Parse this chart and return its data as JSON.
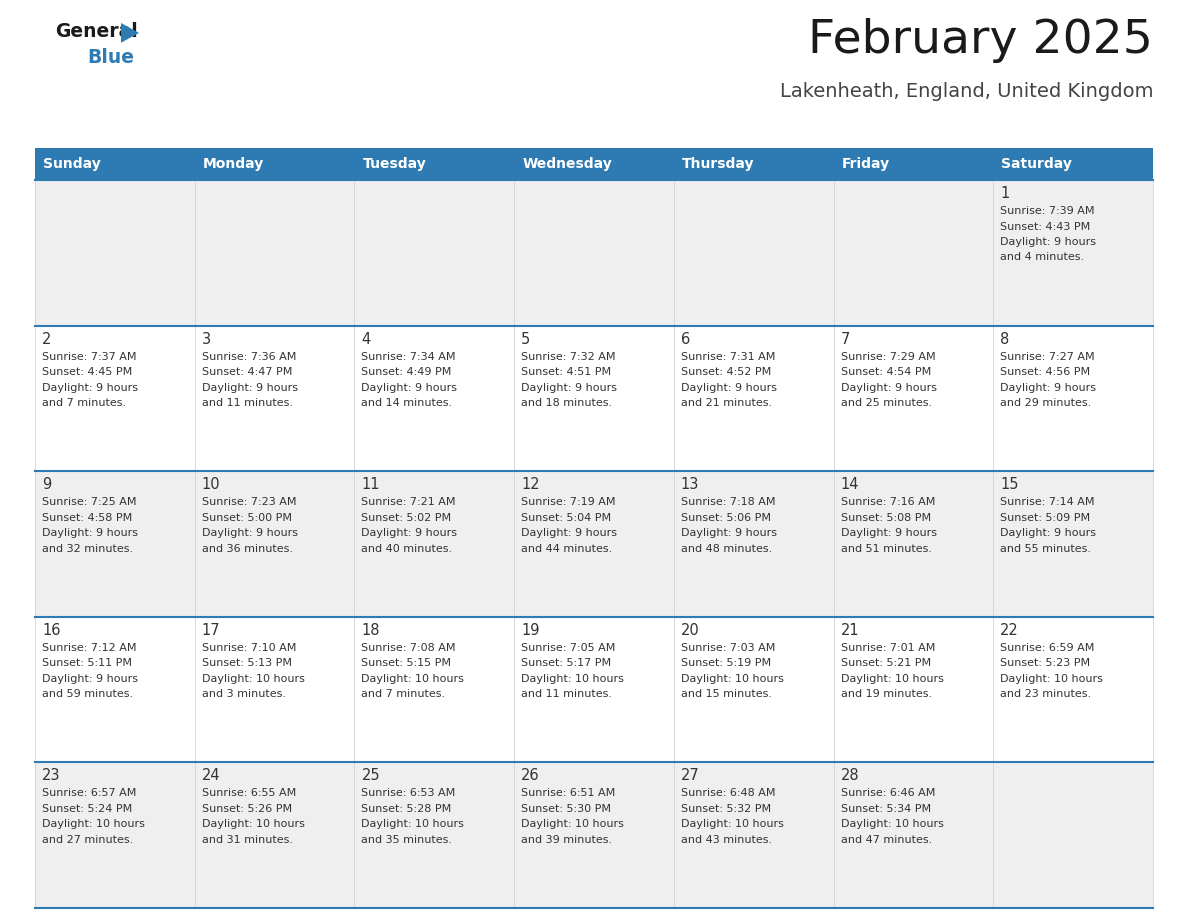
{
  "title": "February 2025",
  "subtitle": "Lakenheath, England, United Kingdom",
  "header_color": "#2E7BB4",
  "header_text_color": "#FFFFFF",
  "cell_bg_odd": "#EFEFEF",
  "cell_bg_even": "#FFFFFF",
  "border_color": "#2E7BB4",
  "text_color": "#333333",
  "days_of_week": [
    "Sunday",
    "Monday",
    "Tuesday",
    "Wednesday",
    "Thursday",
    "Friday",
    "Saturday"
  ],
  "logo_color": "#2E7BB4",
  "calendar_data": [
    [
      null,
      null,
      null,
      null,
      null,
      null,
      {
        "day": 1,
        "sunrise": "7:39 AM",
        "sunset": "4:43 PM",
        "daylight": "9 hours and 4 minutes."
      }
    ],
    [
      {
        "day": 2,
        "sunrise": "7:37 AM",
        "sunset": "4:45 PM",
        "daylight": "9 hours and 7 minutes."
      },
      {
        "day": 3,
        "sunrise": "7:36 AM",
        "sunset": "4:47 PM",
        "daylight": "9 hours and 11 minutes."
      },
      {
        "day": 4,
        "sunrise": "7:34 AM",
        "sunset": "4:49 PM",
        "daylight": "9 hours and 14 minutes."
      },
      {
        "day": 5,
        "sunrise": "7:32 AM",
        "sunset": "4:51 PM",
        "daylight": "9 hours and 18 minutes."
      },
      {
        "day": 6,
        "sunrise": "7:31 AM",
        "sunset": "4:52 PM",
        "daylight": "9 hours and 21 minutes."
      },
      {
        "day": 7,
        "sunrise": "7:29 AM",
        "sunset": "4:54 PM",
        "daylight": "9 hours and 25 minutes."
      },
      {
        "day": 8,
        "sunrise": "7:27 AM",
        "sunset": "4:56 PM",
        "daylight": "9 hours and 29 minutes."
      }
    ],
    [
      {
        "day": 9,
        "sunrise": "7:25 AM",
        "sunset": "4:58 PM",
        "daylight": "9 hours and 32 minutes."
      },
      {
        "day": 10,
        "sunrise": "7:23 AM",
        "sunset": "5:00 PM",
        "daylight": "9 hours and 36 minutes."
      },
      {
        "day": 11,
        "sunrise": "7:21 AM",
        "sunset": "5:02 PM",
        "daylight": "9 hours and 40 minutes."
      },
      {
        "day": 12,
        "sunrise": "7:19 AM",
        "sunset": "5:04 PM",
        "daylight": "9 hours and 44 minutes."
      },
      {
        "day": 13,
        "sunrise": "7:18 AM",
        "sunset": "5:06 PM",
        "daylight": "9 hours and 48 minutes."
      },
      {
        "day": 14,
        "sunrise": "7:16 AM",
        "sunset": "5:08 PM",
        "daylight": "9 hours and 51 minutes."
      },
      {
        "day": 15,
        "sunrise": "7:14 AM",
        "sunset": "5:09 PM",
        "daylight": "9 hours and 55 minutes."
      }
    ],
    [
      {
        "day": 16,
        "sunrise": "7:12 AM",
        "sunset": "5:11 PM",
        "daylight": "9 hours and 59 minutes."
      },
      {
        "day": 17,
        "sunrise": "7:10 AM",
        "sunset": "5:13 PM",
        "daylight": "10 hours and 3 minutes."
      },
      {
        "day": 18,
        "sunrise": "7:08 AM",
        "sunset": "5:15 PM",
        "daylight": "10 hours and 7 minutes."
      },
      {
        "day": 19,
        "sunrise": "7:05 AM",
        "sunset": "5:17 PM",
        "daylight": "10 hours and 11 minutes."
      },
      {
        "day": 20,
        "sunrise": "7:03 AM",
        "sunset": "5:19 PM",
        "daylight": "10 hours and 15 minutes."
      },
      {
        "day": 21,
        "sunrise": "7:01 AM",
        "sunset": "5:21 PM",
        "daylight": "10 hours and 19 minutes."
      },
      {
        "day": 22,
        "sunrise": "6:59 AM",
        "sunset": "5:23 PM",
        "daylight": "10 hours and 23 minutes."
      }
    ],
    [
      {
        "day": 23,
        "sunrise": "6:57 AM",
        "sunset": "5:24 PM",
        "daylight": "10 hours and 27 minutes."
      },
      {
        "day": 24,
        "sunrise": "6:55 AM",
        "sunset": "5:26 PM",
        "daylight": "10 hours and 31 minutes."
      },
      {
        "day": 25,
        "sunrise": "6:53 AM",
        "sunset": "5:28 PM",
        "daylight": "10 hours and 35 minutes."
      },
      {
        "day": 26,
        "sunrise": "6:51 AM",
        "sunset": "5:30 PM",
        "daylight": "10 hours and 39 minutes."
      },
      {
        "day": 27,
        "sunrise": "6:48 AM",
        "sunset": "5:32 PM",
        "daylight": "10 hours and 43 minutes."
      },
      {
        "day": 28,
        "sunrise": "6:46 AM",
        "sunset": "5:34 PM",
        "daylight": "10 hours and 47 minutes."
      },
      null
    ]
  ]
}
